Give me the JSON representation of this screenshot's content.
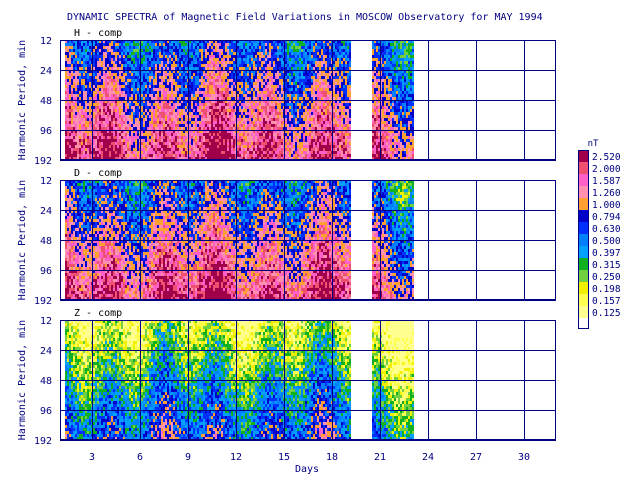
{
  "chart_data": {
    "type": "heatmap",
    "title": "DYNAMIC SPECTRA of Magnetic Field Variations in MOSCOW Observatory for MAY 1994",
    "xlabel": "Days",
    "ylabel": "Harmonic Period, min",
    "xlim": [
      1,
      32
    ],
    "x_ticks": [
      "3",
      "6",
      "9",
      "12",
      "15",
      "18",
      "21",
      "24",
      "27",
      "30"
    ],
    "y_ticks": [
      "12",
      "24",
      "48",
      "96",
      "192"
    ],
    "y_scale": "log2",
    "grid": true,
    "data_coverage": [
      [
        1.3,
        19.2
      ],
      [
        20.5,
        23.1
      ]
    ],
    "panels": [
      {
        "label": "H - comp",
        "dominant_level_index": 2
      },
      {
        "label": "D - comp",
        "dominant_level_index": 2
      },
      {
        "label": "Z - comp",
        "dominant_level_index": 7
      }
    ],
    "colorbar": {
      "unit": "nT",
      "levels": [
        "2.520",
        "2.000",
        "1.587",
        "1.260",
        "1.000",
        "0.794",
        "0.630",
        "0.500",
        "0.397",
        "0.315",
        "0.250",
        "0.198",
        "0.157",
        "0.125"
      ],
      "colors": [
        "#a0004a",
        "#f05070",
        "#ff60c8",
        "#ff90b0",
        "#ffa030",
        "#0000c8",
        "#0030ff",
        "#0080ff",
        "#00a0ff",
        "#10b020",
        "#70d040",
        "#f0f000",
        "#ffff50",
        "#ffff90"
      ]
    }
  }
}
